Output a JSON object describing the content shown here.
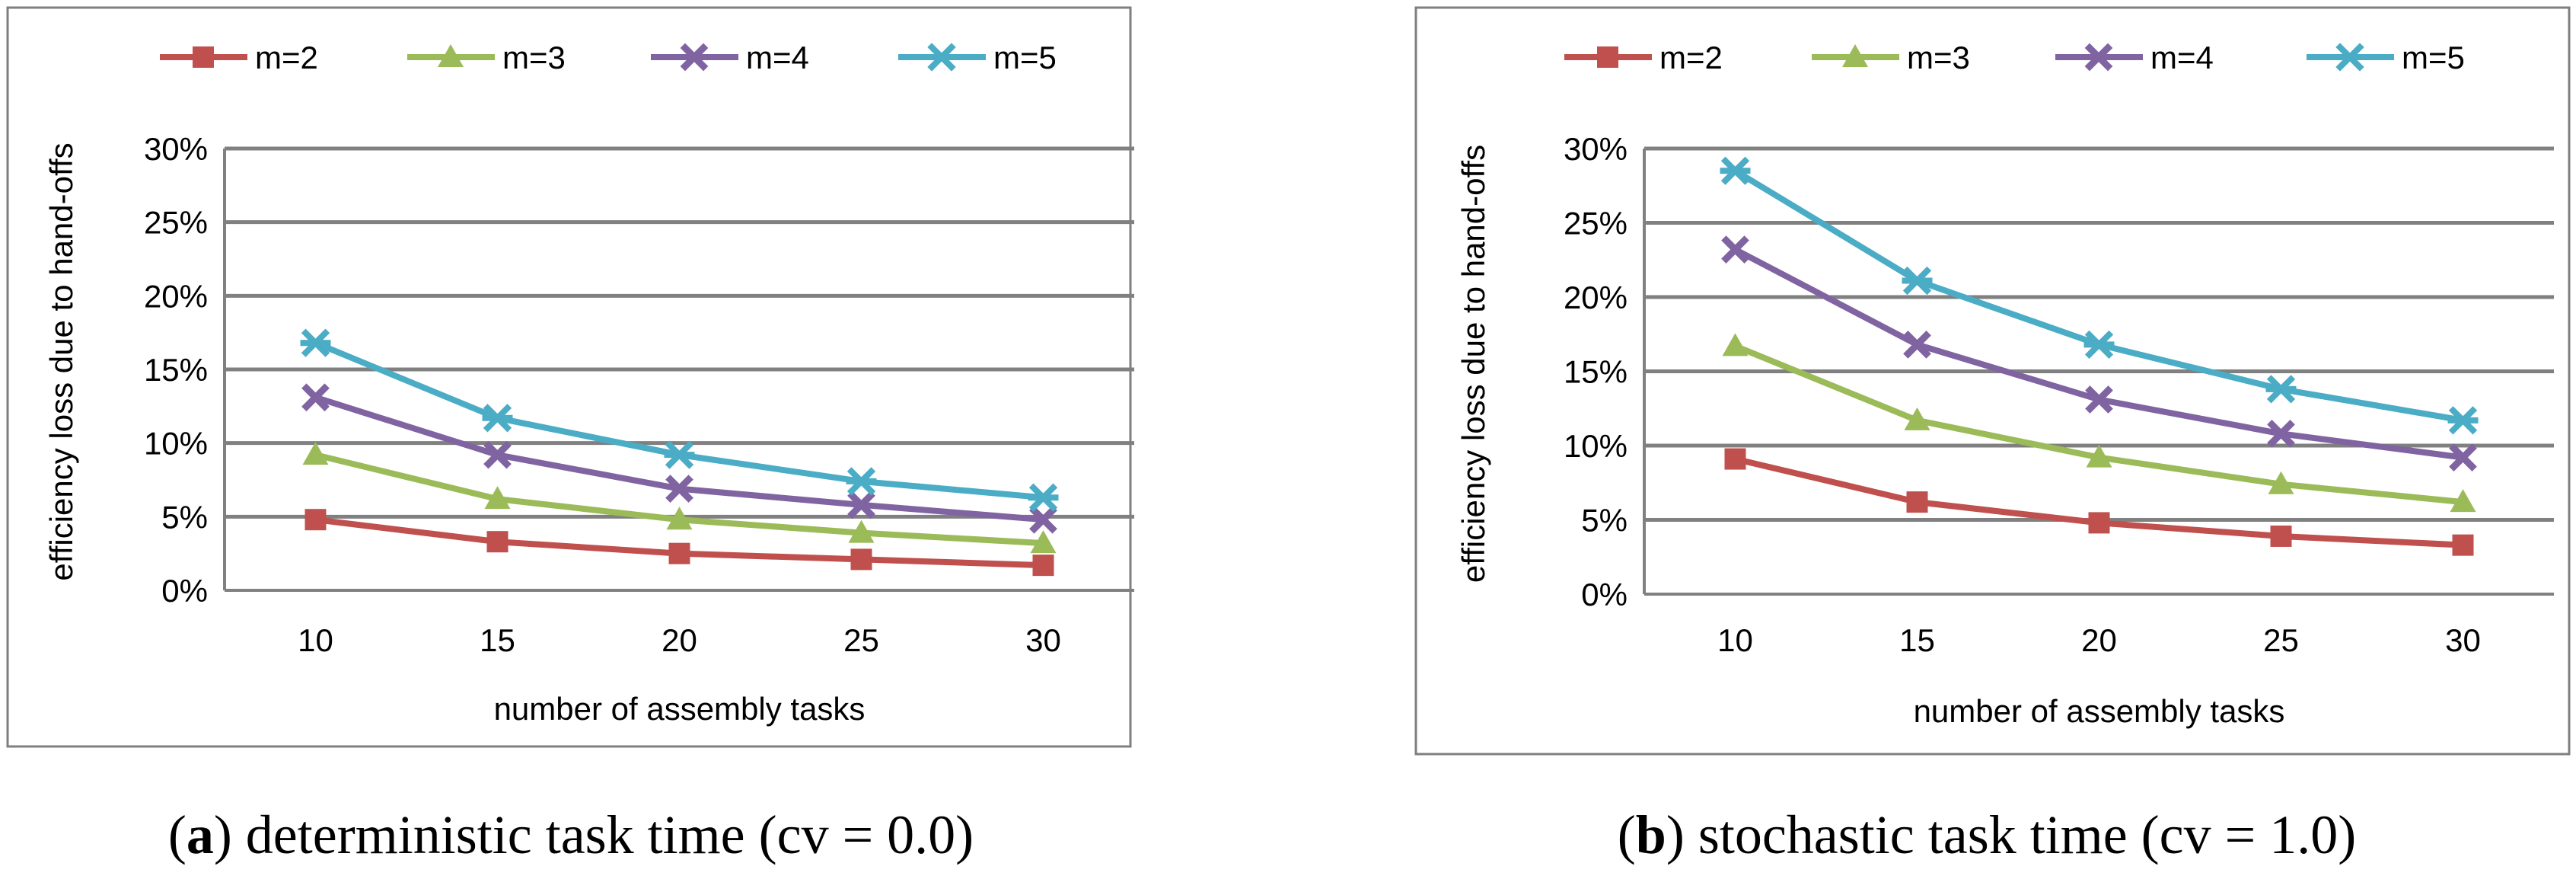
{
  "chart_data": [
    {
      "type": "line",
      "panel_label": "a",
      "caption_text": "deterministic task time (cv = 0.0)",
      "caption": "(a) deterministic task time (cv = 0.0)",
      "xlabel": "number of assembly tasks",
      "ylabel": "efficiency loss due to hand-offs",
      "categories": [
        "10",
        "15",
        "20",
        "25",
        "30"
      ],
      "x": [
        10,
        15,
        20,
        25,
        30
      ],
      "ylim": [
        0,
        30
      ],
      "yticks": [
        "0%",
        "5%",
        "10%",
        "15%",
        "20%",
        "25%",
        "30%"
      ],
      "grid": true,
      "legend_position": "top",
      "series": [
        {
          "name": "m=2",
          "color": "#C0504D",
          "marker": "square",
          "values": [
            4.8,
            3.3,
            2.5,
            2.1,
            1.7
          ]
        },
        {
          "name": "m=3",
          "color": "#9BBB59",
          "marker": "triangle",
          "values": [
            9.2,
            6.2,
            4.8,
            3.9,
            3.2
          ]
        },
        {
          "name": "m=4",
          "color": "#8064A2",
          "marker": "x",
          "values": [
            13.1,
            9.2,
            6.9,
            5.8,
            4.8
          ]
        },
        {
          "name": "m=5",
          "color": "#4BACC6",
          "marker": "star",
          "values": [
            16.8,
            11.7,
            9.2,
            7.4,
            6.3
          ]
        }
      ]
    },
    {
      "type": "line",
      "panel_label": "b",
      "caption_text": "stochastic task time (cv = 1.0)",
      "caption": "(b) stochastic task time (cv = 1.0)",
      "xlabel": "number of assembly tasks",
      "ylabel": "efficiency loss due to hand-offs",
      "categories": [
        "10",
        "15",
        "20",
        "25",
        "30"
      ],
      "x": [
        10,
        15,
        20,
        25,
        30
      ],
      "ylim": [
        0,
        30
      ],
      "yticks": [
        "0%",
        "5%",
        "10%",
        "15%",
        "20%",
        "25%",
        "30%"
      ],
      "grid": true,
      "legend_position": "top",
      "series": [
        {
          "name": "m=2",
          "color": "#C0504D",
          "marker": "square",
          "values": [
            9.1,
            6.2,
            4.8,
            3.9,
            3.3
          ]
        },
        {
          "name": "m=3",
          "color": "#9BBB59",
          "marker": "triangle",
          "values": [
            16.7,
            11.7,
            9.2,
            7.4,
            6.2
          ]
        },
        {
          "name": "m=4",
          "color": "#8064A2",
          "marker": "x",
          "values": [
            23.2,
            16.8,
            13.1,
            10.8,
            9.2
          ]
        },
        {
          "name": "m=5",
          "color": "#4BACC6",
          "marker": "star",
          "values": [
            28.5,
            21.1,
            16.8,
            13.8,
            11.7
          ]
        }
      ]
    }
  ]
}
